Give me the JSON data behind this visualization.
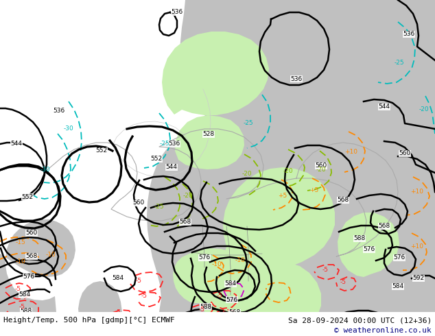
{
  "title_left": "Height/Temp. 500 hPa [gdmp][°C] ECMWF",
  "title_right": "Sa 28-09-2024 00:00 UTC (12+36)",
  "copyright": "© weatheronline.co.uk",
  "ocean_color": "#d8d8d8",
  "land_color": "#c0c0c0",
  "green_color": "#c8f0b0",
  "white_color": "#ffffff",
  "figsize": [
    6.34,
    4.9
  ],
  "dpi": 100,
  "copyright_color": "#000080"
}
